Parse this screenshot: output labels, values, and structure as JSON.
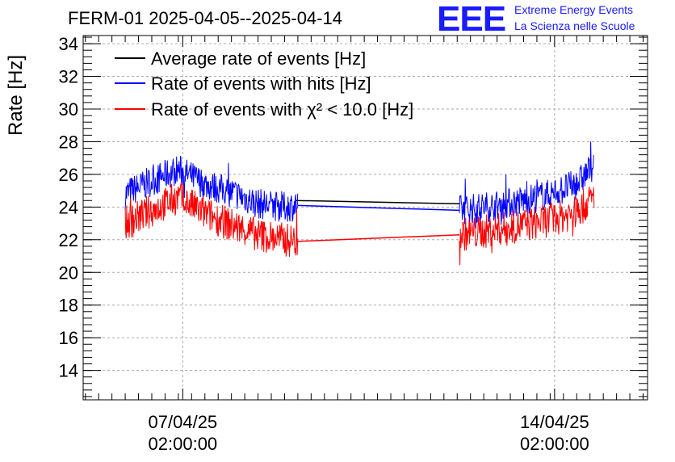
{
  "chart_data": {
    "type": "line",
    "title": "FERM-01 2025-04-05--2025-04-14",
    "ylabel": "Rate [Hz]",
    "xlabel": "",
    "ylim": [
      12.2,
      34.5
    ],
    "grid": true,
    "legend_position": "top-left",
    "y_ticks": [
      "14",
      "16",
      "18",
      "20",
      "22",
      "24",
      "26",
      "28",
      "30",
      "32",
      "34"
    ],
    "x_ticks": [
      {
        "line1": "07/04/25",
        "line2": "02:00:00",
        "value": "2025-04-07 02:00:00"
      },
      {
        "line1": "14/04/25",
        "line2": "02:00:00",
        "value": "2025-04-14 02:00:00"
      }
    ],
    "xlim": [
      "2025-04-05 05:00:00",
      "2025-04-15 20:00:00"
    ],
    "series": [
      {
        "name": "Average rate of events [Hz]",
        "color": "#000000",
        "x": [
          "2025-04-09 05:00:00",
          "2025-04-12 07:00:00"
        ],
        "values": [
          24.4,
          24.2
        ]
      },
      {
        "name": "Rate of events with hits [Hz]",
        "color": "#0000ff",
        "x": [
          "2025-04-06 00:00:00",
          "2025-04-06 12:00:00",
          "2025-04-07 00:00:00",
          "2025-04-07 12:00:00",
          "2025-04-08 00:00:00",
          "2025-04-08 12:00:00",
          "2025-04-09 00:00:00",
          "2025-04-09 06:00:00",
          "2025-04-12 07:00:00",
          "2025-04-13 00:00:00",
          "2025-04-13 12:00:00",
          "2025-04-14 00:00:00",
          "2025-04-14 12:00:00",
          "2025-04-14 20:00:00"
        ],
        "values": [
          24.8,
          25.6,
          26.3,
          25.4,
          24.9,
          24.2,
          24.0,
          24.1,
          23.8,
          24.1,
          24.4,
          24.8,
          25.4,
          26.6
        ]
      },
      {
        "name": "Rate of events with χ² < 10.0 [Hz]",
        "color": "#ff0000",
        "x": [
          "2025-04-06 00:00:00",
          "2025-04-06 12:00:00",
          "2025-04-07 00:00:00",
          "2025-04-07 12:00:00",
          "2025-04-08 00:00:00",
          "2025-04-08 12:00:00",
          "2025-04-09 00:00:00",
          "2025-04-09 06:00:00",
          "2025-04-12 07:00:00",
          "2025-04-13 00:00:00",
          "2025-04-13 12:00:00",
          "2025-04-14 00:00:00",
          "2025-04-14 12:00:00",
          "2025-04-14 20:00:00"
        ],
        "values": [
          23.0,
          23.8,
          24.6,
          23.6,
          22.9,
          22.3,
          22.0,
          21.9,
          22.3,
          22.6,
          22.9,
          23.2,
          23.7,
          24.6
        ]
      }
    ]
  },
  "logo": {
    "mark": "EEE",
    "line1": "Extreme Energy Events",
    "line2": "La Scienza nelle Scuole"
  }
}
